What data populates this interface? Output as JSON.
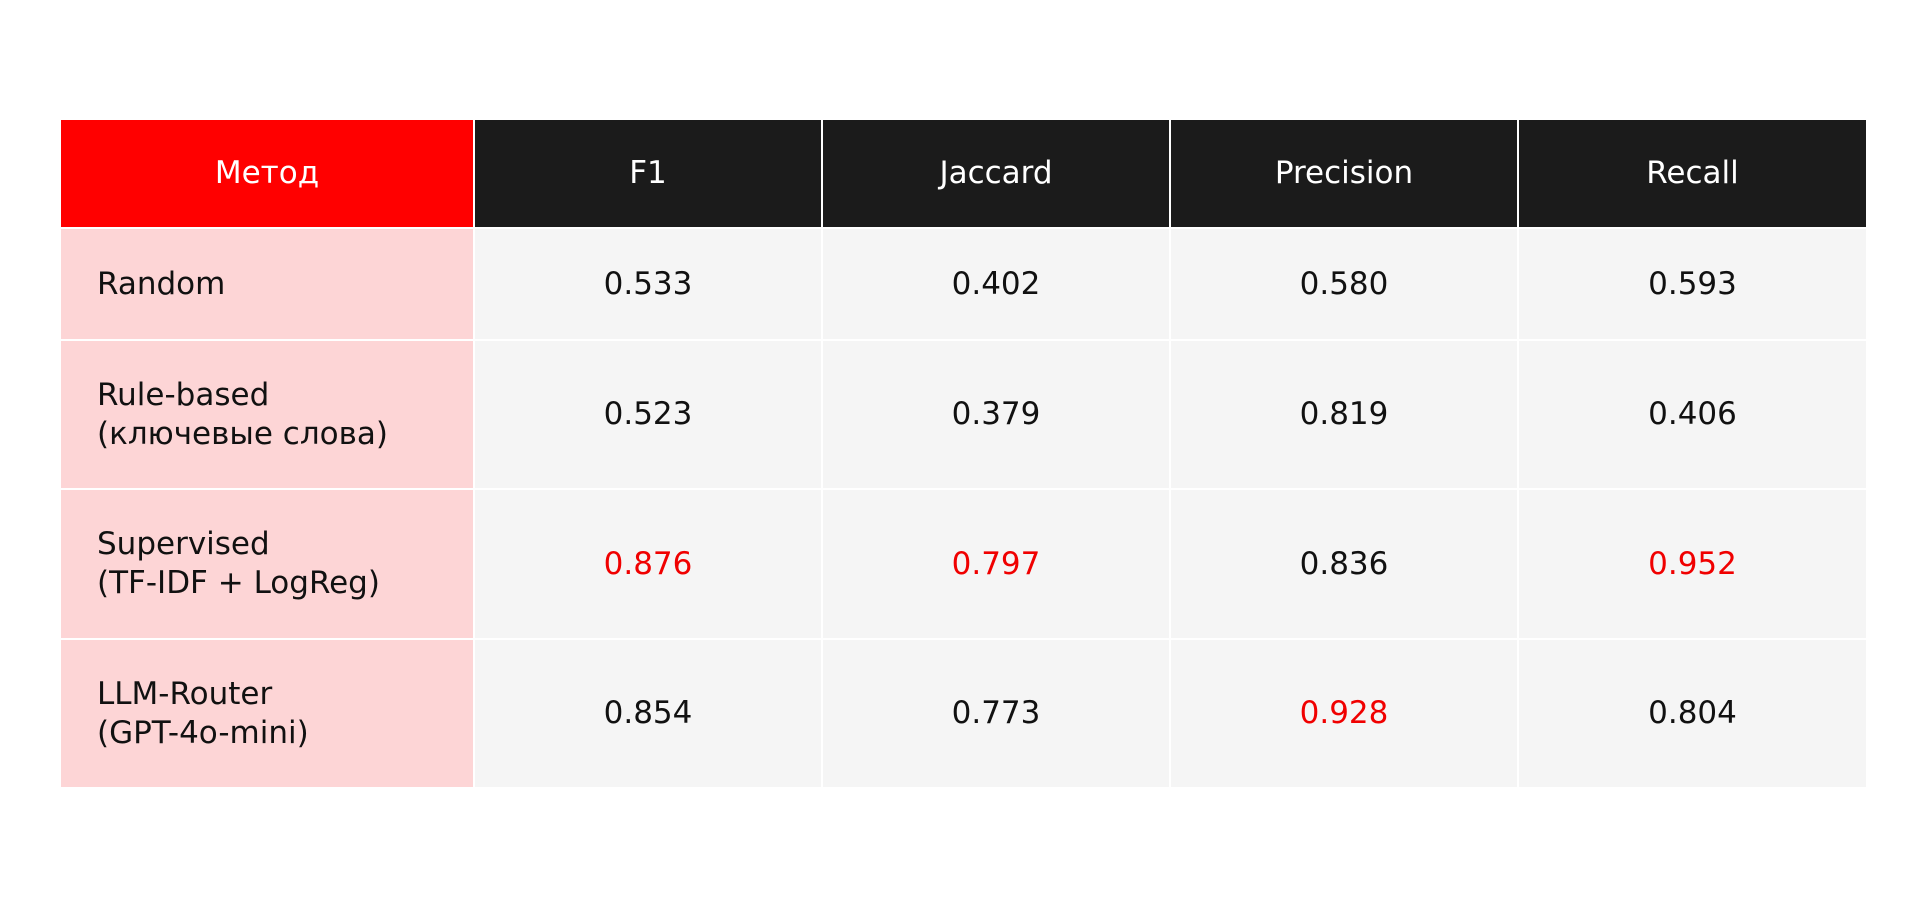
{
  "table": {
    "header": [
      "Метод",
      "F1",
      "Jaccard",
      "Precision",
      "Recall"
    ],
    "rows": [
      {
        "cells": [
          "Random",
          "0.533",
          "0.402",
          "0.580",
          "0.593"
        ],
        "highlight": []
      },
      {
        "cells": [
          "Rule-based\n(ключевые слова)",
          "0.523",
          "0.379",
          "0.819",
          "0.406"
        ],
        "highlight": []
      },
      {
        "cells": [
          "Supervised\n(TF-IDF + LogReg)",
          "0.876",
          "0.797",
          "0.836",
          "0.952"
        ],
        "highlight": [
          1,
          2,
          4
        ]
      },
      {
        "cells": [
          "LLM-Router\n(GPT-4o-mini)",
          "0.854",
          "0.773",
          "0.928",
          "0.804"
        ],
        "highlight": [
          3
        ]
      }
    ],
    "highlight_color": "#f00000"
  }
}
